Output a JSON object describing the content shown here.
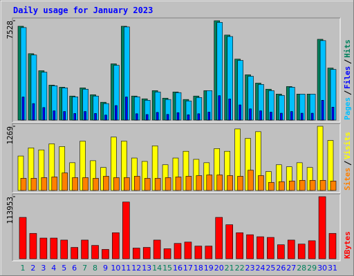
{
  "chart_data": [
    {
      "type": "bar",
      "title": "Daily usage for January 2023",
      "ylim": [
        0,
        7528
      ],
      "yticks": [
        7528
      ],
      "series": [
        {
          "name": "Pages",
          "color": "#00c0ff",
          "values": [
            7010,
            4930,
            3630,
            2600,
            2440,
            1760,
            2340,
            1820,
            1250,
            4150,
            7060,
            1760,
            1500,
            2130,
            1560,
            2080,
            1450,
            1710,
            2230,
            7400,
            6330,
            4520,
            3320,
            2700,
            2230,
            1870,
            2490,
            1970,
            1970,
            6020,
            3840
          ]
        },
        {
          "name": "Files",
          "color": "#0000ff",
          "values": [
            1750,
            1250,
            950,
            700,
            650,
            500,
            650,
            500,
            380,
            1100,
            1750,
            480,
            420,
            580,
            430,
            560,
            400,
            480,
            600,
            1850,
            1600,
            1150,
            850,
            700,
            600,
            520,
            650,
            520,
            520,
            1500,
            980
          ]
        },
        {
          "name": "Hits",
          "color": "#00805c",
          "values": [
            7110,
            5030,
            3740,
            2650,
            2490,
            1820,
            2440,
            1920,
            1350,
            4260,
            7110,
            1820,
            1610,
            2230,
            1660,
            2130,
            1560,
            1820,
            2230,
            7528,
            6440,
            4620,
            3430,
            2800,
            2340,
            1970,
            2540,
            1970,
            1970,
            6120,
            3940
          ]
        }
      ]
    },
    {
      "type": "bar",
      "ylim": [
        0,
        1269
      ],
      "yticks": [
        1269
      ],
      "series": [
        {
          "name": "Sites",
          "color": "#ff8000",
          "values": [
            240,
            240,
            254,
            267,
            347,
            254,
            254,
            240,
            281,
            254,
            254,
            281,
            240,
            240,
            254,
            267,
            281,
            294,
            307,
            307,
            294,
            281,
            401,
            294,
            160,
            174,
            187,
            200,
            200,
            200,
            187
          ]
        },
        {
          "name": "Visits",
          "color": "#ffff00",
          "values": [
            681,
            842,
            802,
            922,
            868,
            548,
            975,
            588,
            454,
            1055,
            975,
            641,
            574,
            882,
            508,
            641,
            775,
            615,
            548,
            828,
            775,
            1216,
            1029,
            1162,
            374,
            508,
            468,
            548,
            454,
            1269,
            989
          ]
        }
      ]
    },
    {
      "type": "bar",
      "ylim": [
        0,
        113953
      ],
      "yticks": [
        113953
      ],
      "categories": [
        "1",
        "2",
        "3",
        "4",
        "5",
        "6",
        "7",
        "8",
        "9",
        "10",
        "11",
        "12",
        "13",
        "14",
        "15",
        "16",
        "17",
        "18",
        "19",
        "20",
        "21",
        "22",
        "23",
        "24",
        "25",
        "26",
        "27",
        "28",
        "29",
        "30",
        "31"
      ],
      "category_colors": [
        "#00805c",
        "#0000ff",
        "#0000ff",
        "#0000ff",
        "#0000ff",
        "#0000ff",
        "#00805c",
        "#00805c",
        "#0000ff",
        "#0000ff",
        "#0000ff",
        "#0000ff",
        "#0000ff",
        "#00805c",
        "#00805c",
        "#0000ff",
        "#0000ff",
        "#0000ff",
        "#0000ff",
        "#0000ff",
        "#00805c",
        "#00805c",
        "#0000ff",
        "#0000ff",
        "#0000ff",
        "#0000ff",
        "#0000ff",
        "#00805c",
        "#00805c",
        "#0000ff",
        "#0000ff"
      ],
      "series": [
        {
          "name": "KBytes",
          "color": "#ff0000",
          "values": [
            75950,
            46550,
            37975,
            37975,
            34300,
            20825,
            34300,
            24500,
            17150,
            47775,
            104125,
            19600,
            20825,
            34300,
            18375,
            28175,
            30625,
            23275,
            23275,
            75950,
            62475,
            47775,
            44100,
            40425,
            39200,
            25725,
            34300,
            26950,
            33075,
            113953,
            46550
          ]
        }
      ]
    }
  ]
}
